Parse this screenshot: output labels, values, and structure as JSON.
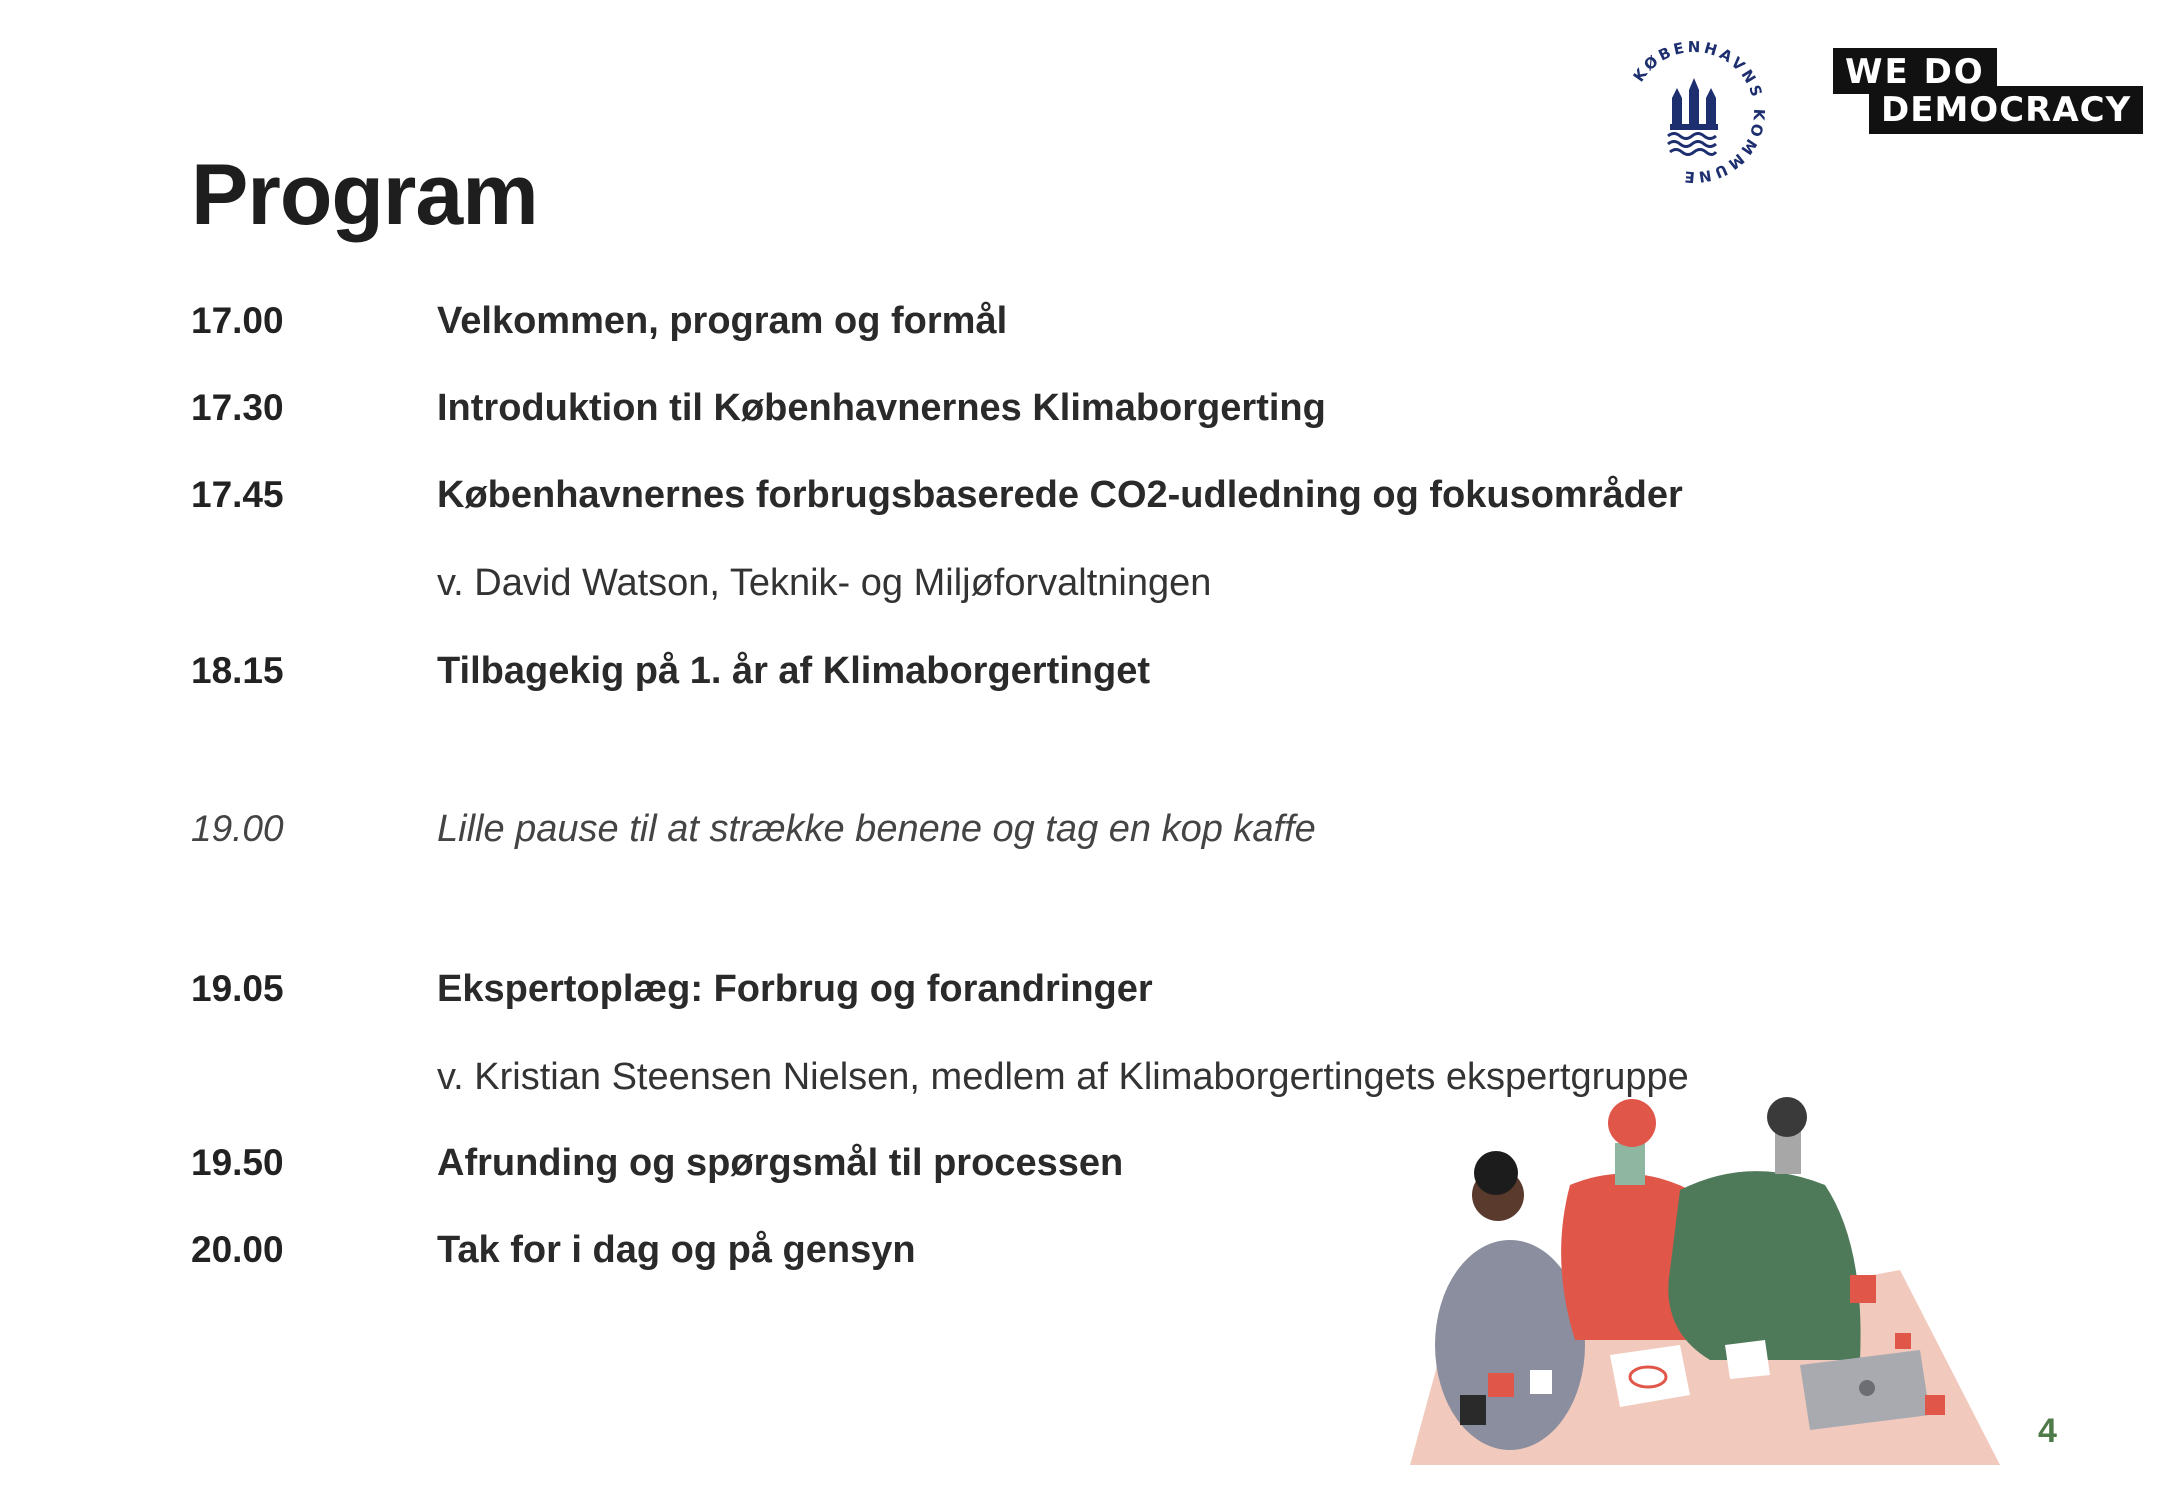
{
  "title": "Program",
  "agenda": [
    {
      "time": "17.00",
      "item": "Velkommen, program og formål"
    },
    {
      "time": "17.30",
      "item": "Introduktion til Københavnernes Klimaborgerting"
    },
    {
      "time": "17.45",
      "item": "Københavnernes forbrugsbaserede CO2-udledning og fokusområder",
      "sub": "v. David Watson, Teknik- og Miljøforvaltningen"
    },
    {
      "time": "18.15",
      "item": " Tilbagekig på 1. år af Klimaborgertinget"
    },
    {
      "time": "19.00",
      "item": "Lille pause til at strække benene og tag en kop kaffe"
    },
    {
      "time": "19.05",
      "item": "Ekspertoplæg: Forbrug og forandringer",
      "sub": "v. Kristian Steensen Nielsen, medlem af Klimaborgertingets ekspertgruppe"
    },
    {
      "time": "19.50",
      "item": "Afrunding og spørgsmål til processen"
    },
    {
      "time": "20.00",
      "item": "Tak for i dag og på gensyn"
    }
  ],
  "logos": {
    "kk_text": "KØBENHAVNS KOMMUNE",
    "wdd_line1": "WE  DO",
    "wdd_line2": "DEMOCRACY"
  },
  "page_number": "4",
  "colors": {
    "text": "#222222",
    "page_number": "#4f7a4a",
    "illustration_table": "#f1c9bd",
    "person_red": "#e0574a",
    "person_green": "#4f7a5a",
    "person_grey": "#8a8e9e"
  }
}
